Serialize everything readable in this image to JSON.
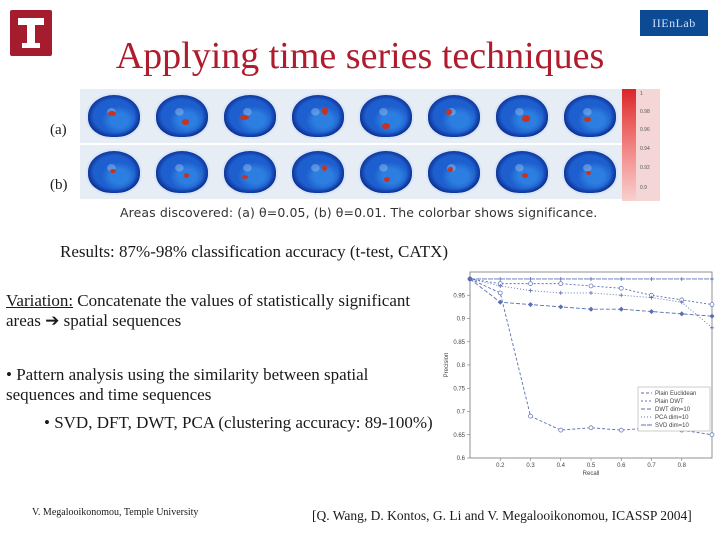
{
  "header": {
    "logo_left_icon": "temple-t-logo",
    "logo_right_text": "IIEnLab",
    "title": "Applying time series techniques"
  },
  "figure": {
    "row_a_label": "(a)",
    "row_b_label": "(b)",
    "colorbar_ticks": [
      "1",
      "0.98",
      "0.96",
      "0.94",
      "0.92",
      "0.9"
    ],
    "caption": "Areas discovered: (a) θ=0.05, (b) θ=0.01. The colorbar shows significance."
  },
  "body": {
    "results": "Results: 87%-98% classification accuracy (t-test, CATX)",
    "variation_label": "Variation:",
    "variation_text": " Concatenate the values of statistically significant areas ➔ spatial sequences",
    "bullet1": "• Pattern analysis using the similarity between spatial sequences and time sequences",
    "bullet2": "• SVD, DFT, DWT, PCA (clustering accuracy: 89-100%)"
  },
  "footer": {
    "left": "V. Megalooikonomou, Temple University",
    "right": "[Q. Wang, D. Kontos, G. Li and V. Megalooikonomou, ICASSP 2004]"
  },
  "chart_data": {
    "type": "line",
    "xlabel": "Recall",
    "ylabel": "Precision",
    "x": [
      0.1,
      0.2,
      0.3,
      0.4,
      0.5,
      0.6,
      0.7,
      0.8,
      0.9
    ],
    "xticks": [
      "0.2",
      "0.3",
      "0.4",
      "0.5",
      "0.6",
      "0.7",
      "0.8"
    ],
    "ylim": [
      0.6,
      1.0
    ],
    "yticks": [
      "0.6",
      "0.65",
      "0.7",
      "0.75",
      "0.8",
      "0.85",
      "0.9",
      "0.95"
    ],
    "legend_position": "bottom-right",
    "series": [
      {
        "name": "Plain Euclidean",
        "color": "#5a6fb3",
        "values": [
          0.985,
          0.955,
          0.69,
          0.66,
          0.665,
          0.66,
          0.665,
          0.66,
          0.65
        ]
      },
      {
        "name": "Plain DWT",
        "color": "#5a6fb3",
        "values": [
          0.985,
          0.975,
          0.975,
          0.975,
          0.97,
          0.965,
          0.95,
          0.94,
          0.93
        ]
      },
      {
        "name": "DWT dim=10",
        "color": "#5a6fb3",
        "values": [
          0.985,
          0.935,
          0.93,
          0.925,
          0.92,
          0.92,
          0.915,
          0.91,
          0.905
        ]
      },
      {
        "name": "PCA dim=10",
        "color": "#5a6fb3",
        "values": [
          0.985,
          0.97,
          0.96,
          0.955,
          0.955,
          0.95,
          0.945,
          0.935,
          0.88
        ]
      },
      {
        "name": "SVD dim=10",
        "color": "#5a6fb3",
        "values": [
          0.985,
          0.985,
          0.985,
          0.985,
          0.985,
          0.985,
          0.985,
          0.985,
          0.985
        ]
      }
    ]
  }
}
